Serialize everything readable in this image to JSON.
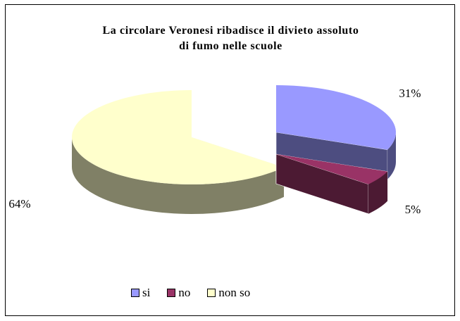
{
  "chart_data": {
    "type": "pie",
    "style": "3d-exploded",
    "title": "La circolare Veronesi ribadisce il divieto assoluto di fumo nelle scuole",
    "title_lines": [
      "La circolare Veronesi ribadisce il divieto assoluto",
      "di fumo nelle scuole"
    ],
    "categories": [
      "si",
      "no",
      "non so"
    ],
    "values": [
      31,
      5,
      64
    ],
    "labels": [
      "31%",
      "5%",
      "64%"
    ],
    "colors": [
      "#9999ff",
      "#993366",
      "#ffffcc"
    ],
    "side_colors": [
      "#4d4d80",
      "#4c1a33",
      "#808066"
    ],
    "legend_position": "bottom"
  }
}
